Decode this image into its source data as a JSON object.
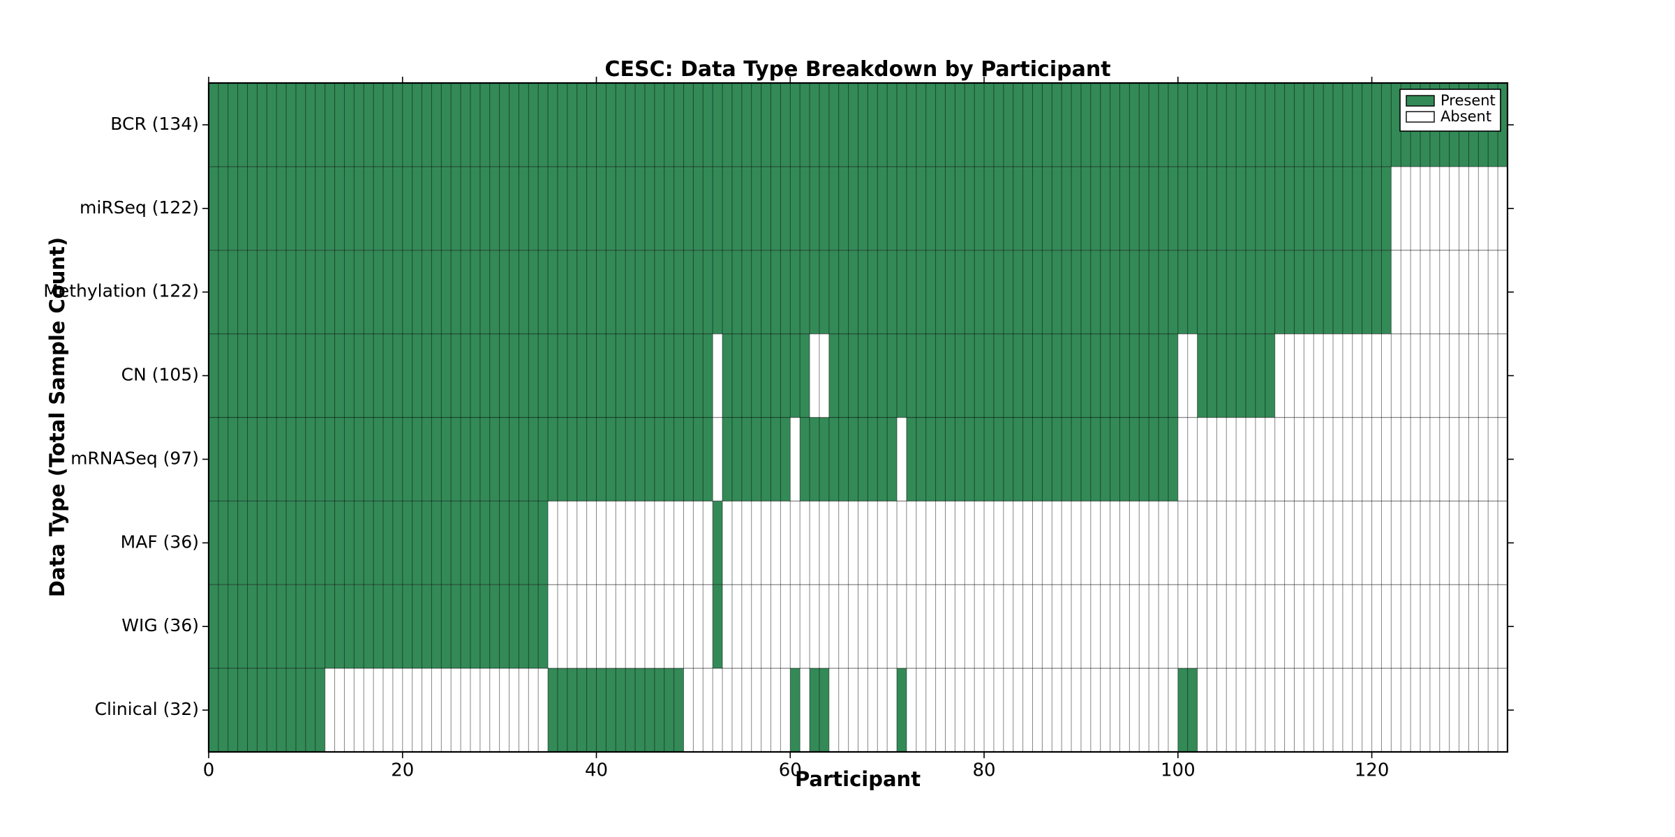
{
  "chart_data": {
    "type": "heatmap",
    "title": "CESC: Data Type Breakdown by Participant",
    "xlabel": "Participant",
    "ylabel": "Data Type (Total Sample Count)",
    "n_participants": 134,
    "x_ticks": [
      0,
      20,
      40,
      60,
      80,
      100,
      120
    ],
    "colors": {
      "present": "#338a57",
      "absent": "#ffffff"
    },
    "legend": [
      {
        "label": "Present",
        "color": "#338a57"
      },
      {
        "label": "Absent",
        "color": "#ffffff"
      }
    ],
    "legend_position": "upper right",
    "grid": "per-cell edges",
    "rows": [
      {
        "label": "BCR",
        "count": 134,
        "present_runs": [
          [
            0,
            134
          ]
        ]
      },
      {
        "label": "miRSeq",
        "count": 122,
        "present_runs": [
          [
            0,
            122
          ]
        ]
      },
      {
        "label": "Methylation",
        "count": 122,
        "present_runs": [
          [
            0,
            122
          ]
        ]
      },
      {
        "label": "CN",
        "count": 105,
        "present_runs": [
          [
            0,
            52
          ],
          [
            53,
            62
          ],
          [
            64,
            100
          ],
          [
            102,
            110
          ]
        ]
      },
      {
        "label": "mRNASeq",
        "count": 97,
        "present_runs": [
          [
            0,
            52
          ],
          [
            53,
            60
          ],
          [
            61,
            71
          ],
          [
            72,
            100
          ]
        ]
      },
      {
        "label": "MAF",
        "count": 36,
        "present_runs": [
          [
            0,
            35
          ],
          [
            52,
            53
          ]
        ]
      },
      {
        "label": "WIG",
        "count": 36,
        "present_runs": [
          [
            0,
            35
          ],
          [
            52,
            53
          ]
        ]
      },
      {
        "label": "Clinical",
        "count": 32,
        "present_runs": [
          [
            0,
            12
          ],
          [
            35,
            49
          ],
          [
            60,
            61
          ],
          [
            62,
            64
          ],
          [
            71,
            72
          ],
          [
            100,
            102
          ]
        ]
      }
    ]
  }
}
